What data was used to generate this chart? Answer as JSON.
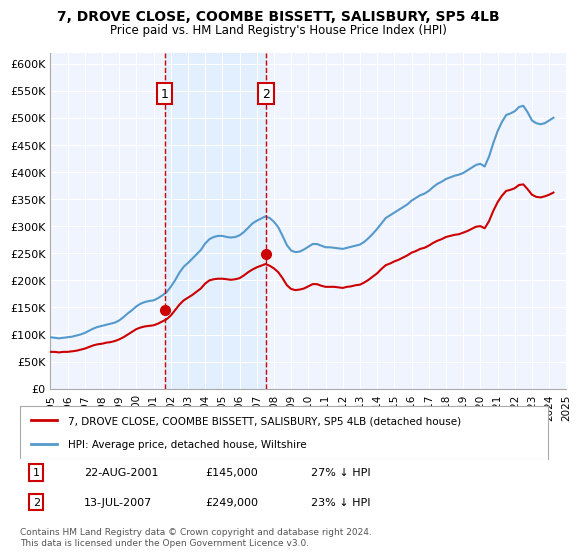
{
  "title1": "7, DROVE CLOSE, COOMBE BISSETT, SALISBURY, SP5 4LB",
  "title2": "Price paid vs. HM Land Registry's House Price Index (HPI)",
  "ylabel": "",
  "background_color": "#ffffff",
  "plot_bg_color": "#f0f4ff",
  "grid_color": "#ffffff",
  "legend_line1": "7, DROVE CLOSE, COOMBE BISSETT, SALISBURY, SP5 4LB (detached house)",
  "legend_line2": "HPI: Average price, detached house, Wiltshire",
  "footnote": "Contains HM Land Registry data © Crown copyright and database right 2024.\nThis data is licensed under the Open Government Licence v3.0.",
  "sale1_label": "1",
  "sale1_date": "22-AUG-2001",
  "sale1_price": "£145,000",
  "sale1_hpi": "27% ↓ HPI",
  "sale2_label": "2",
  "sale2_date": "13-JUL-2007",
  "sale2_price": "£249,000",
  "sale2_hpi": "23% ↓ HPI",
  "red_color": "#cc0000",
  "blue_color": "#5599cc",
  "sale_marker_color": "#cc0000",
  "vline_color": "#cc0000",
  "shade_color": "#ddeeff",
  "ylim": [
    0,
    620000
  ],
  "yticks": [
    0,
    50000,
    100000,
    150000,
    200000,
    250000,
    300000,
    350000,
    400000,
    450000,
    500000,
    550000,
    600000
  ],
  "hpi_data": {
    "years": [
      1995.0,
      1995.25,
      1995.5,
      1995.75,
      1996.0,
      1996.25,
      1996.5,
      1996.75,
      1997.0,
      1997.25,
      1997.5,
      1997.75,
      1998.0,
      1998.25,
      1998.5,
      1998.75,
      1999.0,
      1999.25,
      1999.5,
      1999.75,
      2000.0,
      2000.25,
      2000.5,
      2000.75,
      2001.0,
      2001.25,
      2001.5,
      2001.75,
      2002.0,
      2002.25,
      2002.5,
      2002.75,
      2003.0,
      2003.25,
      2003.5,
      2003.75,
      2004.0,
      2004.25,
      2004.5,
      2004.75,
      2005.0,
      2005.25,
      2005.5,
      2005.75,
      2006.0,
      2006.25,
      2006.5,
      2006.75,
      2007.0,
      2007.25,
      2007.5,
      2007.75,
      2008.0,
      2008.25,
      2008.5,
      2008.75,
      2009.0,
      2009.25,
      2009.5,
      2009.75,
      2010.0,
      2010.25,
      2010.5,
      2010.75,
      2011.0,
      2011.25,
      2011.5,
      2011.75,
      2012.0,
      2012.25,
      2012.5,
      2012.75,
      2013.0,
      2013.25,
      2013.5,
      2013.75,
      2014.0,
      2014.25,
      2014.5,
      2014.75,
      2015.0,
      2015.25,
      2015.5,
      2015.75,
      2016.0,
      2016.25,
      2016.5,
      2016.75,
      2017.0,
      2017.25,
      2017.5,
      2017.75,
      2018.0,
      2018.25,
      2018.5,
      2018.75,
      2019.0,
      2019.25,
      2019.5,
      2019.75,
      2020.0,
      2020.25,
      2020.5,
      2020.75,
      2021.0,
      2021.25,
      2021.5,
      2021.75,
      2022.0,
      2022.25,
      2022.5,
      2022.75,
      2023.0,
      2023.25,
      2023.5,
      2023.75,
      2024.0,
      2024.25
    ],
    "values": [
      95000,
      94000,
      93000,
      94000,
      95000,
      96000,
      98000,
      100000,
      103000,
      107000,
      111000,
      114000,
      116000,
      118000,
      120000,
      122000,
      126000,
      132000,
      139000,
      145000,
      152000,
      157000,
      160000,
      162000,
      163000,
      167000,
      172000,
      178000,
      188000,
      200000,
      214000,
      225000,
      232000,
      240000,
      248000,
      256000,
      268000,
      276000,
      280000,
      282000,
      282000,
      280000,
      279000,
      280000,
      283000,
      289000,
      297000,
      305000,
      310000,
      314000,
      318000,
      315000,
      308000,
      298000,
      282000,
      265000,
      255000,
      252000,
      253000,
      257000,
      262000,
      267000,
      267000,
      264000,
      261000,
      261000,
      260000,
      259000,
      258000,
      260000,
      262000,
      264000,
      266000,
      271000,
      278000,
      286000,
      295000,
      305000,
      315000,
      320000,
      325000,
      330000,
      335000,
      340000,
      347000,
      352000,
      357000,
      360000,
      365000,
      372000,
      378000,
      382000,
      387000,
      390000,
      393000,
      395000,
      398000,
      403000,
      408000,
      413000,
      415000,
      410000,
      428000,
      453000,
      475000,
      492000,
      505000,
      508000,
      512000,
      520000,
      522000,
      510000,
      495000,
      490000,
      488000,
      490000,
      495000,
      500000
    ]
  },
  "red_data": {
    "years": [
      1995.0,
      1995.25,
      1995.5,
      1995.75,
      1996.0,
      1996.25,
      1996.5,
      1996.75,
      1997.0,
      1997.25,
      1997.5,
      1997.75,
      1998.0,
      1998.25,
      1998.5,
      1998.75,
      1999.0,
      1999.25,
      1999.5,
      1999.75,
      2000.0,
      2000.25,
      2000.5,
      2000.75,
      2001.0,
      2001.25,
      2001.5,
      2001.75,
      2002.0,
      2002.25,
      2002.5,
      2002.75,
      2003.0,
      2003.25,
      2003.5,
      2003.75,
      2004.0,
      2004.25,
      2004.5,
      2004.75,
      2005.0,
      2005.25,
      2005.5,
      2005.75,
      2006.0,
      2006.25,
      2006.5,
      2006.75,
      2007.0,
      2007.25,
      2007.5,
      2007.75,
      2008.0,
      2008.25,
      2008.5,
      2008.75,
      2009.0,
      2009.25,
      2009.5,
      2009.75,
      2010.0,
      2010.25,
      2010.5,
      2010.75,
      2011.0,
      2011.25,
      2011.5,
      2011.75,
      2012.0,
      2012.25,
      2012.5,
      2012.75,
      2013.0,
      2013.25,
      2013.5,
      2013.75,
      2014.0,
      2014.25,
      2014.5,
      2014.75,
      2015.0,
      2015.25,
      2015.5,
      2015.75,
      2016.0,
      2016.25,
      2016.5,
      2016.75,
      2017.0,
      2017.25,
      2017.5,
      2017.75,
      2018.0,
      2018.25,
      2018.5,
      2018.75,
      2019.0,
      2019.25,
      2019.5,
      2019.75,
      2020.0,
      2020.25,
      2020.5,
      2020.75,
      2021.0,
      2021.25,
      2021.5,
      2021.75,
      2022.0,
      2022.25,
      2022.5,
      2022.75,
      2023.0,
      2023.25,
      2023.5,
      2023.75,
      2024.0,
      2024.25
    ],
    "values": [
      68000,
      68000,
      67000,
      68000,
      68000,
      69000,
      70000,
      72000,
      74000,
      77000,
      80000,
      82000,
      83000,
      85000,
      86000,
      88000,
      91000,
      95000,
      100000,
      105000,
      110000,
      113000,
      115000,
      116000,
      117000,
      120000,
      124000,
      128000,
      135000,
      145000,
      155000,
      163000,
      168000,
      173000,
      179000,
      185000,
      194000,
      200000,
      202000,
      203000,
      203000,
      202000,
      201000,
      202000,
      204000,
      209000,
      215000,
      220000,
      224000,
      227000,
      230000,
      227000,
      222000,
      215000,
      204000,
      191000,
      184000,
      182000,
      183000,
      185000,
      189000,
      193000,
      193000,
      190000,
      188000,
      188000,
      188000,
      187000,
      186000,
      188000,
      189000,
      191000,
      192000,
      196000,
      201000,
      207000,
      213000,
      221000,
      228000,
      231000,
      235000,
      238000,
      242000,
      246000,
      251000,
      254000,
      258000,
      260000,
      264000,
      269000,
      273000,
      276000,
      280000,
      282000,
      284000,
      285000,
      288000,
      291000,
      295000,
      299000,
      300000,
      296000,
      309000,
      328000,
      344000,
      356000,
      365000,
      367000,
      370000,
      376000,
      377000,
      368000,
      358000,
      354000,
      353000,
      355000,
      358000,
      362000
    ]
  },
  "sale1_x": 2001.64,
  "sale1_y": 145000,
  "sale2_x": 2007.53,
  "sale2_y": 249000,
  "shade_x1": 2001.64,
  "shade_x2": 2007.53,
  "xmin": 1995.0,
  "xmax": 2024.5
}
